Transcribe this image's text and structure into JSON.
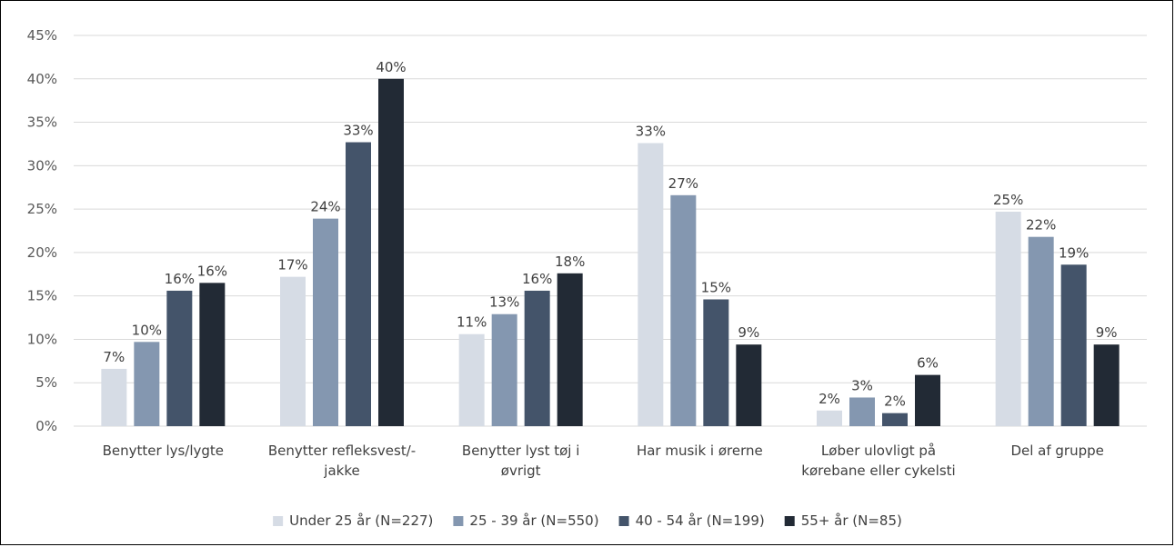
{
  "chart_data": {
    "type": "bar",
    "title": "",
    "xlabel": "",
    "ylabel": "",
    "ylim": [
      0,
      45
    ],
    "y_tick_step": 5,
    "y_tick_format": "percent",
    "grid": "horizontal",
    "legend_position": "bottom",
    "categories": [
      [
        "Benytter lys/lygte"
      ],
      [
        "Benytter refleksvest/-",
        "jakke"
      ],
      [
        "Benytter lyst tøj i",
        "øvrigt"
      ],
      [
        "Har musik i ørerne"
      ],
      [
        "Løber ulovligt på",
        "kørebane eller cykelsti"
      ],
      [
        "Del af gruppe"
      ]
    ],
    "series": [
      {
        "name": "Under 25 år (N=227)",
        "color": "#D6DCE5",
        "values": [
          6.6,
          17.2,
          10.6,
          32.6,
          1.8,
          24.7
        ],
        "labels": [
          "7%",
          "17%",
          "11%",
          "33%",
          "2%",
          "25%"
        ]
      },
      {
        "name": "25 - 39 år (N=550)",
        "color": "#8497B0",
        "values": [
          9.7,
          23.9,
          12.9,
          26.6,
          3.3,
          21.8
        ],
        "labels": [
          "10%",
          "24%",
          "13%",
          "27%",
          "3%",
          "22%"
        ]
      },
      {
        "name": "40 - 54 år (N=199)",
        "color": "#44546A",
        "values": [
          15.6,
          32.7,
          15.6,
          14.6,
          1.5,
          18.6
        ],
        "labels": [
          "16%",
          "33%",
          "16%",
          "15%",
          "2%",
          "19%"
        ]
      },
      {
        "name": "55+ år (N=85)",
        "color": "#222A35",
        "values": [
          16.5,
          40.0,
          17.6,
          9.4,
          5.9,
          9.4
        ],
        "labels": [
          "16%",
          "40%",
          "18%",
          "9%",
          "6%",
          "9%"
        ]
      }
    ]
  }
}
